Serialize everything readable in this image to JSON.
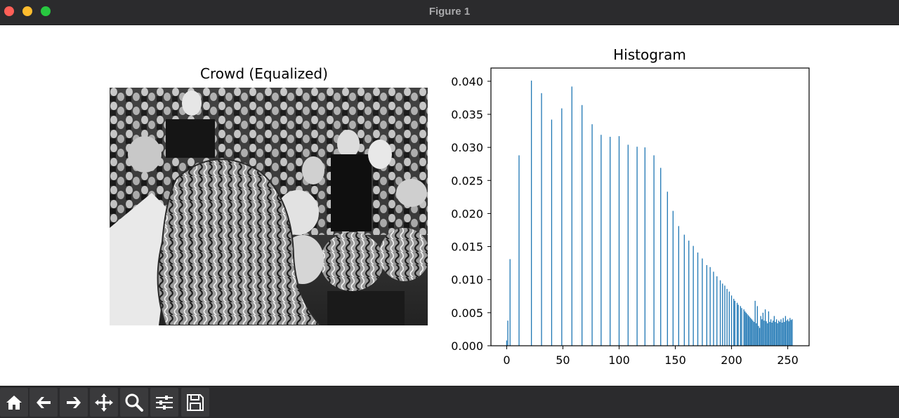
{
  "window": {
    "title": "Figure 1"
  },
  "image_panel": {
    "title": "Crowd (Equalized)"
  },
  "toolbar": {
    "icons": [
      "home-icon",
      "back-arrow-icon",
      "forward-arrow-icon",
      "pan-icon",
      "zoom-icon",
      "configure-subplots-icon",
      "save-icon"
    ]
  },
  "chart_data": {
    "type": "bar",
    "title": "Histogram",
    "xlabel": "",
    "ylabel": "",
    "xlim": [
      -14,
      269
    ],
    "ylim": [
      0,
      0.042
    ],
    "xticks": [
      0,
      50,
      100,
      150,
      200,
      250
    ],
    "yticks": [
      "0.000",
      "0.005",
      "0.010",
      "0.015",
      "0.020",
      "0.025",
      "0.030",
      "0.035",
      "0.040"
    ],
    "grid": false,
    "bar_color": "#1f77b4",
    "series": [
      {
        "x": [
          0,
          1,
          3,
          11,
          22,
          31,
          40,
          49,
          58,
          67,
          76,
          84,
          92,
          100,
          108,
          116,
          123,
          131,
          137,
          143,
          148,
          153,
          158,
          162,
          166,
          170,
          174,
          178,
          181,
          184,
          187,
          190,
          192,
          194,
          196,
          198,
          200,
          202,
          203,
          205,
          206,
          208,
          209,
          211,
          212,
          213,
          214,
          215,
          216,
          217,
          218,
          219,
          220,
          221,
          222,
          223,
          224,
          225,
          226,
          227,
          228,
          229,
          230,
          231,
          232,
          233,
          234,
          235,
          236,
          237,
          238,
          239,
          240,
          241,
          242,
          243,
          244,
          245,
          246,
          247,
          248,
          249,
          250,
          251,
          252,
          253,
          254
        ],
        "values": [
          0.0008,
          0.0038,
          0.0131,
          0.0288,
          0.0401,
          0.0382,
          0.0342,
          0.0359,
          0.0392,
          0.0364,
          0.0335,
          0.0319,
          0.0316,
          0.0317,
          0.0304,
          0.0301,
          0.03,
          0.0288,
          0.0269,
          0.0233,
          0.0204,
          0.0181,
          0.0168,
          0.0159,
          0.0151,
          0.0141,
          0.0132,
          0.0122,
          0.0119,
          0.0112,
          0.0105,
          0.0099,
          0.0094,
          0.0091,
          0.0086,
          0.0082,
          0.0076,
          0.0071,
          0.0068,
          0.0065,
          0.0062,
          0.006,
          0.0057,
          0.0055,
          0.0052,
          0.005,
          0.0048,
          0.0046,
          0.0044,
          0.0042,
          0.004,
          0.0038,
          0.0036,
          0.0068,
          0.0034,
          0.006,
          0.003,
          0.0027,
          0.0045,
          0.004,
          0.005,
          0.0038,
          0.0055,
          0.0037,
          0.0034,
          0.0052,
          0.0036,
          0.004,
          0.0035,
          0.0038,
          0.0045,
          0.0036,
          0.004,
          0.0034,
          0.0038,
          0.0036,
          0.004,
          0.0035,
          0.0042,
          0.0036,
          0.0045,
          0.0038,
          0.004,
          0.0037,
          0.0042,
          0.0039,
          0.004
        ]
      }
    ]
  }
}
